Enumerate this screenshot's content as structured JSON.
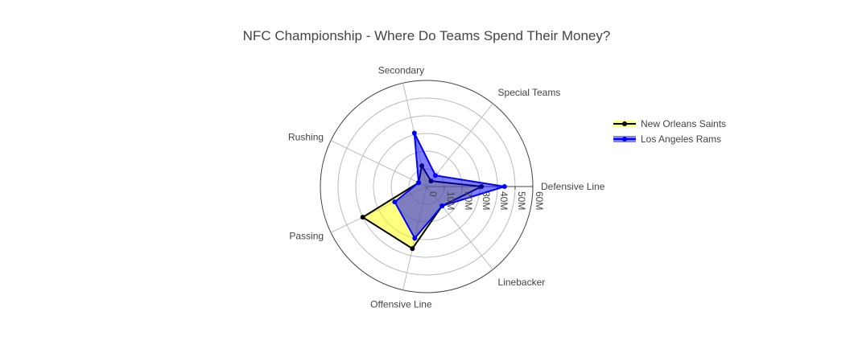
{
  "chart_data": {
    "type": "radar",
    "title": "NFC Championship - Where Do Teams Spend Their Money?",
    "categories": [
      "Defensive Line",
      "Linebacker",
      "Offensive Line",
      "Passing",
      "Rushing",
      "Secondary",
      "Special Teams"
    ],
    "radial_ticks": [
      "0",
      "10M",
      "20M",
      "30M",
      "40M",
      "50M",
      "60M"
    ],
    "radial_range": [
      0,
      60
    ],
    "grid": true,
    "legend_position": "right",
    "series": [
      {
        "name": "New Orleans Saints",
        "line_color": "#000000",
        "fill_color": "#ffff00",
        "values": [
          31,
          14,
          36,
          40,
          5,
          12,
          4
        ]
      },
      {
        "name": "Los Angeles Rams",
        "line_color": "#0000ff",
        "fill_color": "#0000ff",
        "values": [
          44,
          14,
          30,
          20,
          5,
          31,
          8
        ]
      }
    ]
  }
}
